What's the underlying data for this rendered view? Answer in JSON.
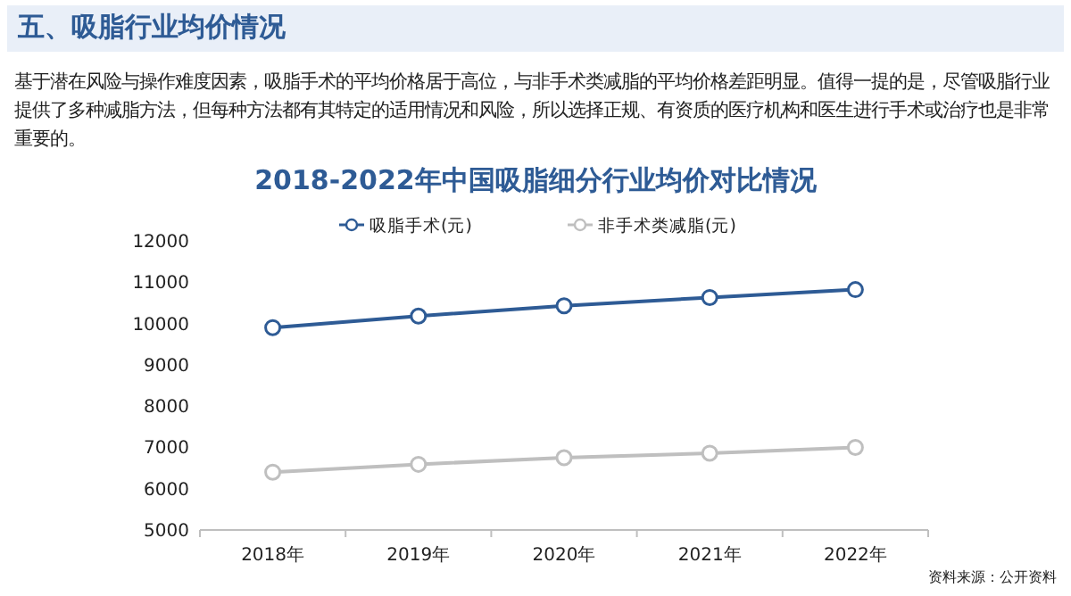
{
  "chart_data": {
    "type": "line",
    "title": "2018-2022年中国吸脂细分行业均价对比情况",
    "annotations": [
      "五、吸脂行业均价情况",
      "基于潜在风险与操作难度因素，吸脂手术的平均价格居于高位，与非手术类减脂的平均价格差距明显。值得一提的是，尽管吸脂行业提供了多种减脂方法，但每种方法都有其特定的适用情况和风险，所以选择正规、有资质的医疗机构和医生进行手术或治疗也是非常重要的。",
      "资料来源：公开资料"
    ],
    "categories": [
      "2018年",
      "2019年",
      "2020年",
      "2021年",
      "2022年"
    ],
    "series": [
      {
        "name": "吸脂手术(元)",
        "color": "#2e5b95",
        "values": [
          9900,
          10180,
          10430,
          10630,
          10820
        ]
      },
      {
        "name": "非手术类减脂(元)",
        "color": "#bfbfbf",
        "values": [
          6400,
          6590,
          6750,
          6860,
          7000
        ]
      }
    ],
    "ylim": [
      5000,
      12000
    ],
    "yticks": [
      5000,
      6000,
      7000,
      8000,
      9000,
      10000,
      11000,
      12000
    ],
    "grid": false,
    "legend": "top",
    "marker": "circle",
    "line_style": "solid"
  }
}
